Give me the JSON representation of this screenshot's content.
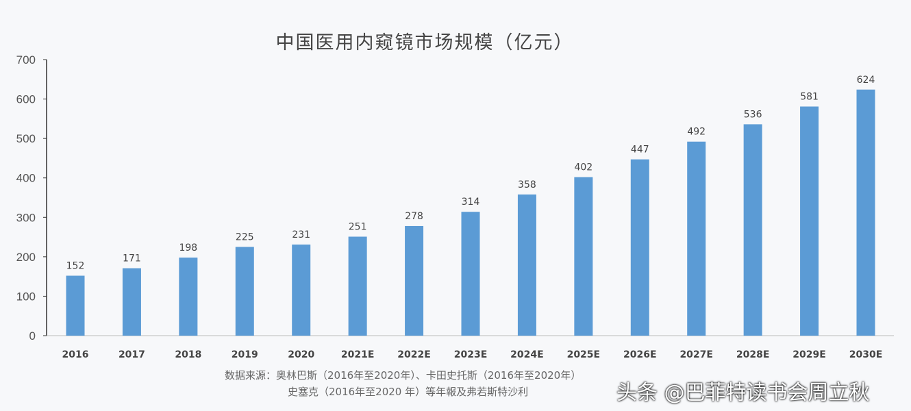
{
  "chart_data": {
    "type": "bar",
    "title": "中国医用内窥镜市场规模（亿元）",
    "categories": [
      "2016",
      "2017",
      "2018",
      "2019",
      "2020",
      "2021E",
      "2022E",
      "2023E",
      "2024E",
      "2025E",
      "2026E",
      "2027E",
      "2028E",
      "2029E",
      "2030E"
    ],
    "values": [
      152,
      171,
      198,
      225,
      231,
      251,
      278,
      314,
      358,
      402,
      447,
      492,
      536,
      581,
      624
    ],
    "ylim": [
      0,
      700
    ],
    "yticks": [
      0,
      100,
      200,
      300,
      400,
      500,
      600,
      700
    ],
    "grid": false,
    "bar_color": "#5b9bd5"
  },
  "source": {
    "line1": "数据来源：奥林巴斯（2016年至2020年）、卡田史托斯（2016年至2020年）",
    "line2": "史塞克（2016年至2020 年）等年報及弗若斯特沙利"
  },
  "watermark": "头条 @巴菲特读书会周立秋"
}
